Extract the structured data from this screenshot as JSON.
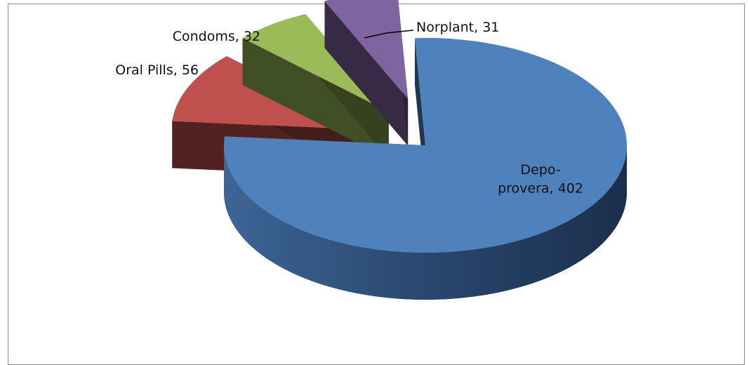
{
  "chart_data": {
    "type": "pie",
    "style": "3d-exploded",
    "legend": "none",
    "slices": [
      {
        "label": "Depo-provera",
        "value": 402,
        "data_label_lines": [
          "Depo-",
          "provera, 402"
        ],
        "color": "#4f81bd",
        "exploded": false
      },
      {
        "label": "Oral Pills",
        "value": 56,
        "data_label_lines": [
          "Oral Pills, 56"
        ],
        "color": "#c0504d",
        "exploded": true
      },
      {
        "label": "Condoms",
        "value": 32,
        "data_label_lines": [
          "Condoms, 32"
        ],
        "color": "#9bbb59",
        "exploded": true
      },
      {
        "label": "Norplant",
        "value": 31,
        "data_label_lines": [
          "Norplant, 31"
        ],
        "color": "#8064a2",
        "exploded": true
      }
    ]
  }
}
